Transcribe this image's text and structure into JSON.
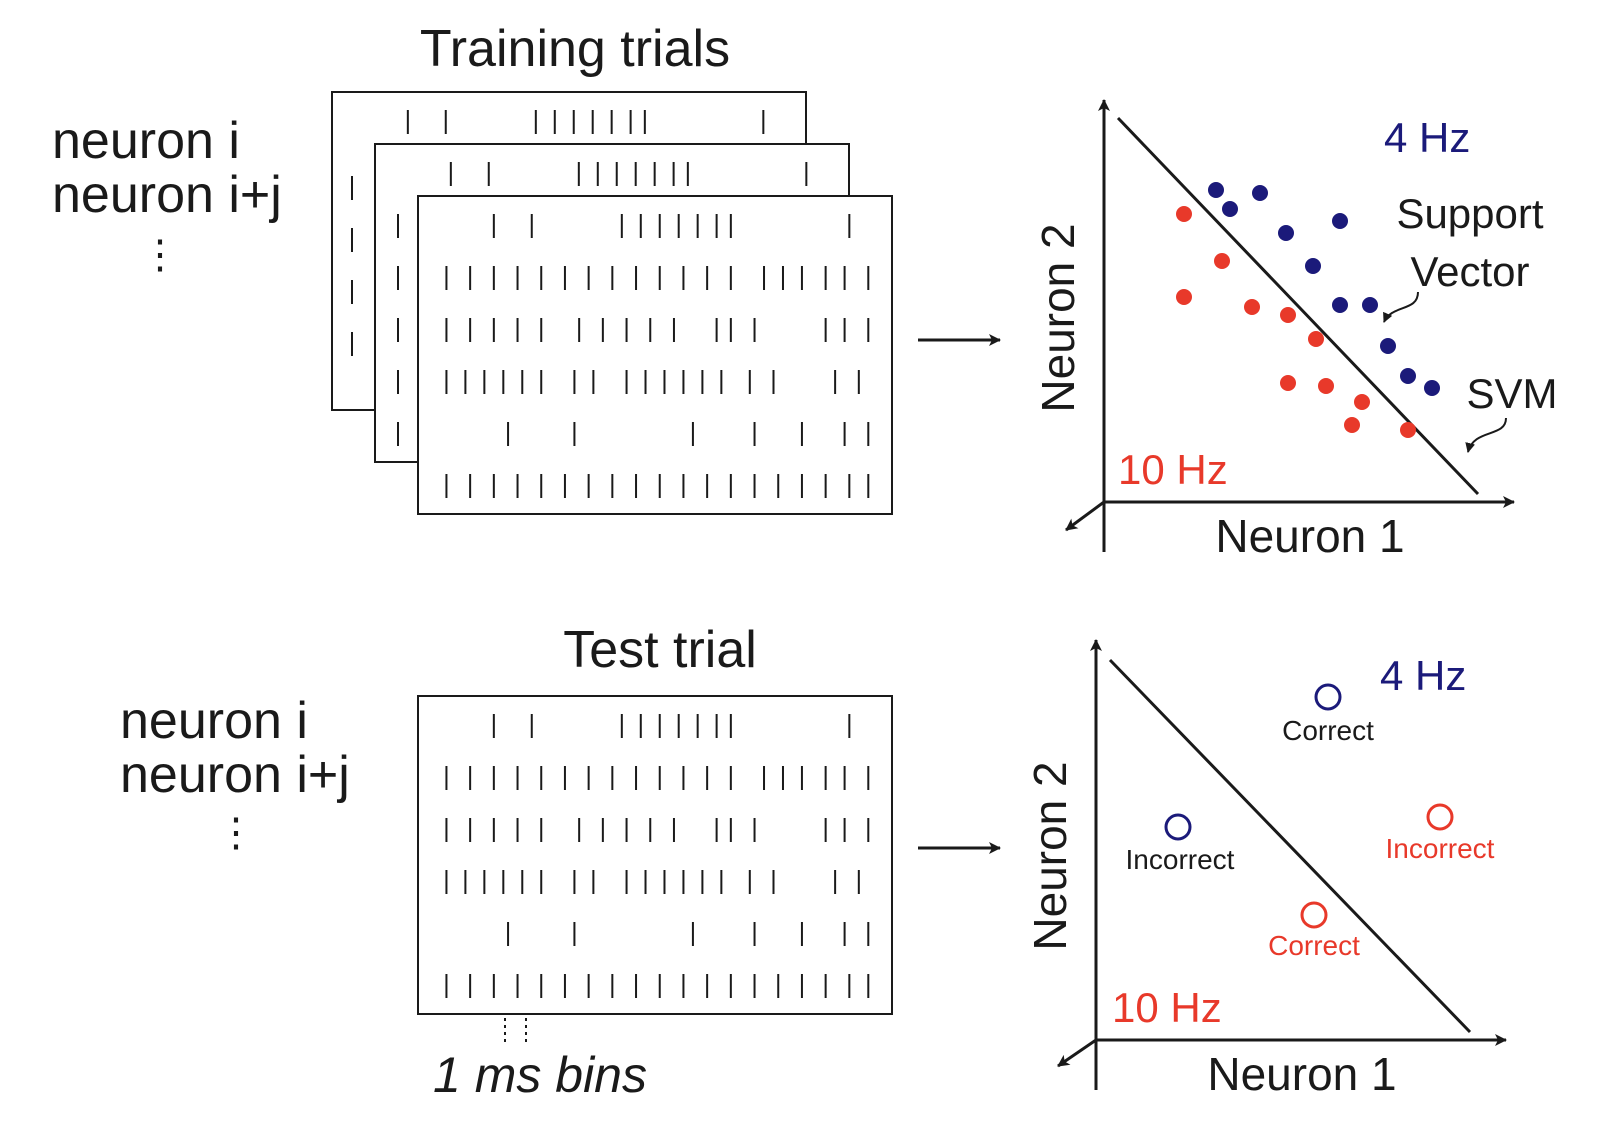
{
  "colors": {
    "class_4hz": "#1b1a7a",
    "class_10hz": "#e8392a",
    "ink": "#1a1a1a"
  },
  "training": {
    "title": "Training trials",
    "row_labels": [
      "neuron i",
      "neuron i+j"
    ],
    "ellipsis": "⋮"
  },
  "test": {
    "title": "Test trial",
    "row_labels": [
      "neuron i",
      "neuron i+j"
    ],
    "ellipsis": "⋮",
    "bin_label": "1 ms bins"
  },
  "svm_train": {
    "label_4hz": "4 Hz",
    "label_10hz": "10 Hz",
    "support_vector_label": [
      "Support",
      "Vector"
    ],
    "svm_label": "SVM",
    "xaxis": "Neuron 1",
    "yaxis": "Neuron 2"
  },
  "svm_test": {
    "label_4hz": "4 Hz",
    "label_10hz": "10 Hz",
    "xaxis": "Neuron 1",
    "yaxis": "Neuron 2",
    "points": [
      {
        "label": "Correct",
        "class": "4hz"
      },
      {
        "label": "Incorrect",
        "class": "4hz"
      },
      {
        "label": "Incorrect",
        "class": "10hz"
      },
      {
        "label": "Correct",
        "class": "10hz"
      }
    ]
  }
}
